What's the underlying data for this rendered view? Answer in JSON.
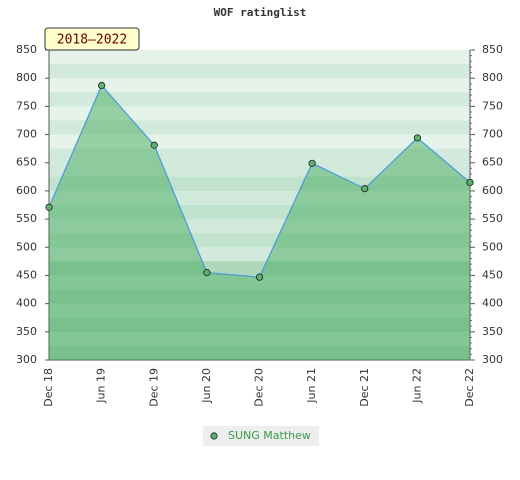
{
  "chart_data": {
    "type": "line",
    "title": "WOF ratinglist",
    "period": "2018–2022",
    "categories": [
      "Dec 18",
      "Jun 19",
      "Dec 19",
      "Jun 20",
      "Dec 20",
      "Jun 21",
      "Dec 21",
      "Jun 22",
      "Dec 22"
    ],
    "series": [
      {
        "name": "SUNG Matthew",
        "color": "#4d9edb",
        "marker_color": "#5cb06a",
        "values": [
          571,
          787,
          681,
          455,
          447,
          649,
          604,
          694,
          615
        ]
      }
    ],
    "ylim": [
      300,
      850
    ],
    "yticks": [
      300,
      350,
      400,
      450,
      500,
      550,
      600,
      650,
      700,
      750,
      800,
      850
    ],
    "y2lim": [
      300,
      850
    ],
    "y2ticks": [
      300,
      350,
      400,
      450,
      500,
      550,
      600,
      650,
      700,
      750,
      800,
      850
    ]
  }
}
